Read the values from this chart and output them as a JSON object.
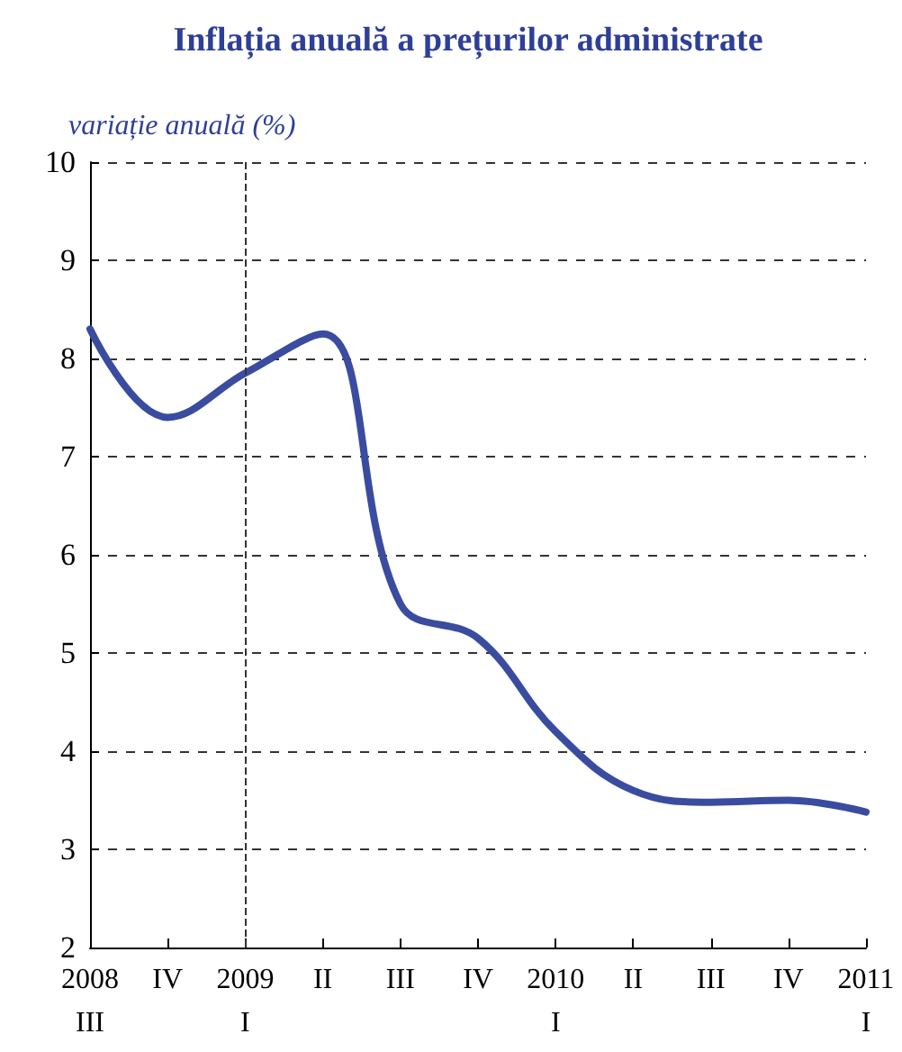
{
  "chart_data": {
    "type": "line",
    "title": "Inflația anuală a prețurilor administrate",
    "ylabel": "variație anuală (%)",
    "categories": [
      "2008\nIII",
      "IV",
      "2009\nI",
      "II",
      "III",
      "IV",
      "2010\nI",
      "II",
      "III",
      "IV",
      "2011\nI"
    ],
    "series": [
      {
        "color": "#3a4ca0",
        "values": [
          8.3,
          7.4,
          7.85,
          8.25,
          5.5,
          5.15,
          4.2,
          3.6,
          3.48,
          3.5,
          3.38
        ]
      }
    ],
    "ylim": [
      2,
      10
    ],
    "yticks": [
      2,
      3,
      4,
      5,
      6,
      7,
      8,
      9,
      10
    ],
    "grid": "y",
    "marker": "none",
    "line_style": "solid",
    "ref_lines": [
      {
        "axis": "x",
        "value": "2009\nI",
        "color": "#333333",
        "line_style": "dashed"
      }
    ]
  }
}
